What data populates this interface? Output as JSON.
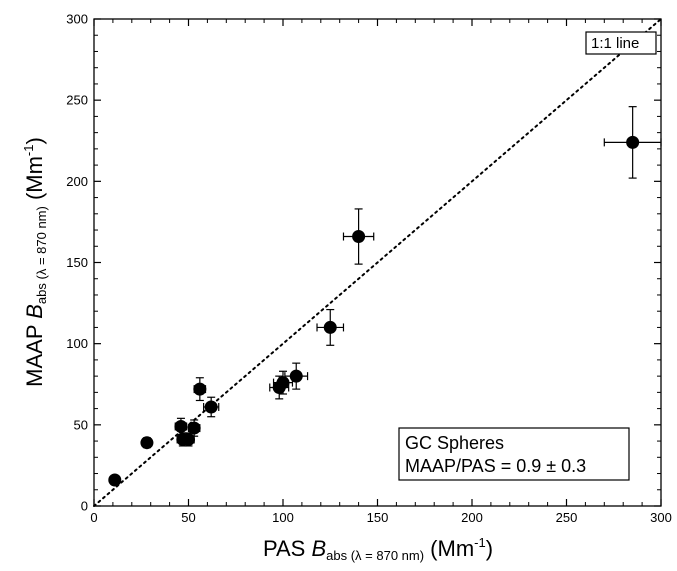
{
  "chart_data": {
    "type": "scatter",
    "x_title": {
      "prefix": "PAS ",
      "var": "B",
      "subscript": "abs (λ = 870 nm)",
      "unit": " (Mm",
      "unit_sup": "-1",
      "unit_close": ")"
    },
    "y_title": {
      "prefix": "MAAP ",
      "var": "B",
      "subscript": "abs (λ = 870 nm)",
      "unit": " (Mm",
      "unit_sup": "-1",
      "unit_close": ")"
    },
    "xlim": [
      0,
      300
    ],
    "ylim": [
      0,
      300
    ],
    "xticks": [
      0,
      50,
      100,
      150,
      200,
      250,
      300
    ],
    "yticks": [
      0,
      50,
      100,
      150,
      200,
      250,
      300
    ],
    "grid": false,
    "reference_line": {
      "label": "1:1 line",
      "slope": 1,
      "style": "dotted"
    },
    "annotation": {
      "lines": [
        "GC Spheres",
        "MAAP/PAS = 0.9 ± 0.3"
      ],
      "position": "bottom-right"
    },
    "points": [
      {
        "x": 11,
        "y": 16,
        "xerr": 2,
        "yerr": 2
      },
      {
        "x": 28,
        "y": 39,
        "xerr": 2,
        "yerr": 3
      },
      {
        "x": 46,
        "y": 49,
        "xerr": 3,
        "yerr": 5
      },
      {
        "x": 47,
        "y": 41,
        "xerr": 3,
        "yerr": 4
      },
      {
        "x": 50,
        "y": 41,
        "xerr": 3,
        "yerr": 4
      },
      {
        "x": 53,
        "y": 48,
        "xerr": 3,
        "yerr": 5
      },
      {
        "x": 56,
        "y": 72,
        "xerr": 3,
        "yerr": 7
      },
      {
        "x": 62,
        "y": 61,
        "xerr": 4,
        "yerr": 6
      },
      {
        "x": 98,
        "y": 73,
        "xerr": 5,
        "yerr": 7
      },
      {
        "x": 100,
        "y": 76,
        "xerr": 5,
        "yerr": 7
      },
      {
        "x": 107,
        "y": 80,
        "xerr": 6,
        "yerr": 8
      },
      {
        "x": 125,
        "y": 110,
        "xerr": 7,
        "yerr": 11
      },
      {
        "x": 140,
        "y": 166,
        "xerr": 8,
        "yerr": 17
      },
      {
        "x": 285,
        "y": 224,
        "xerr": 15,
        "yerr": 22
      }
    ]
  }
}
